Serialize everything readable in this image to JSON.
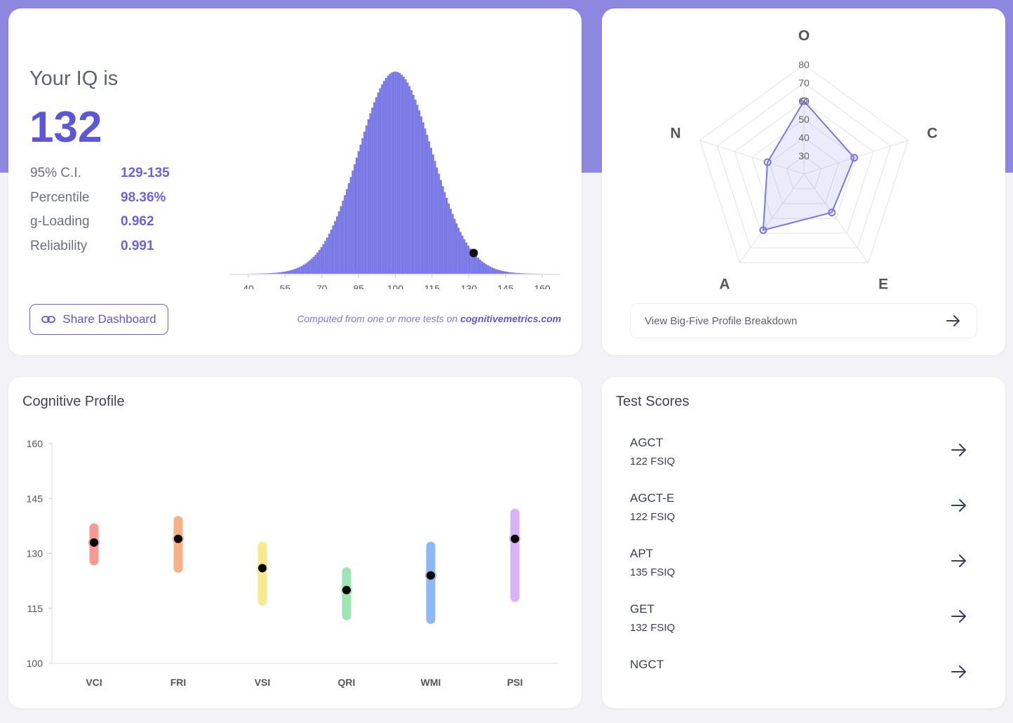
{
  "iq_card": {
    "title": "Your IQ is",
    "iq": "132",
    "stats": [
      {
        "label": "95% C.I.",
        "value": "129-135"
      },
      {
        "label": "Percentile",
        "value": "98.36%"
      },
      {
        "label": "g-Loading",
        "value": "0.962"
      },
      {
        "label": "Reliability",
        "value": "0.991"
      }
    ],
    "share_label": "Share Dashboard",
    "computed_prefix": "Computed from one or more tests on ",
    "computed_site": "cognitivemetrics.com"
  },
  "chart_data": [
    {
      "type": "bar",
      "mean": 100,
      "sd": 15,
      "marker": 132,
      "xticks": [
        "40",
        "55",
        "70",
        "85",
        "100",
        "115",
        "130",
        "145",
        "160"
      ],
      "xlim": [
        35,
        165
      ],
      "color": "#7b7ae6"
    },
    {
      "type": "radar",
      "axes": [
        "O",
        "C",
        "E",
        "A",
        "N"
      ],
      "values": [
        60,
        49,
        46,
        58,
        41
      ],
      "rlim": [
        20,
        80
      ],
      "rticks": [
        "30",
        "40",
        "50",
        "60",
        "70",
        "80"
      ],
      "color": "#7b76e6"
    },
    {
      "type": "scatter",
      "title": "Cognitive Profile",
      "categories": [
        "VCI",
        "FRI",
        "VSI",
        "QRI",
        "WMI",
        "PSI"
      ],
      "values": [
        133,
        134,
        126,
        120,
        124,
        134
      ],
      "lower": [
        128,
        126,
        117,
        113,
        112,
        118
      ],
      "upper": [
        137,
        139,
        132,
        125,
        132,
        141
      ],
      "colors": [
        "#f59a94",
        "#f7b184",
        "#f8ea8c",
        "#9ee6b4",
        "#8cb8f5",
        "#d8b2f7"
      ],
      "yticks": [
        "160",
        "145",
        "130",
        "115",
        "100"
      ],
      "ylim": [
        100,
        160
      ]
    }
  ],
  "bigfive": {
    "link_label": "View Big-Five Profile Breakdown"
  },
  "tests": {
    "title": "Test Scores",
    "items": [
      {
        "name": "AGCT",
        "score": "122 FSIQ"
      },
      {
        "name": "AGCT-E",
        "score": "122 FSIQ"
      },
      {
        "name": "APT",
        "score": "135 FSIQ"
      },
      {
        "name": "GET",
        "score": "132 FSIQ"
      },
      {
        "name": "NGCT",
        "score": ""
      }
    ]
  }
}
